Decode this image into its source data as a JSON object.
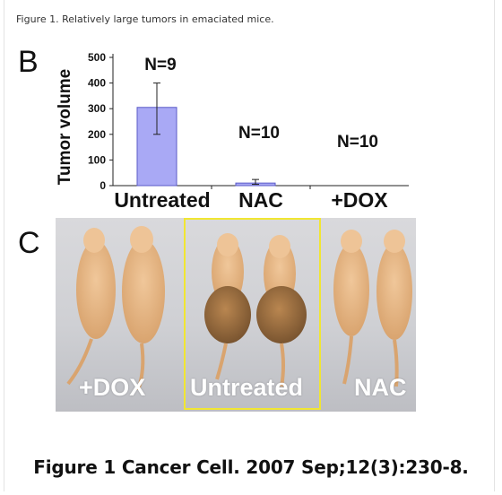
{
  "figure_caption": "Figure 1. Relatively large tumors in emaciated mice.",
  "panels": {
    "b_label": "B",
    "c_label": "C"
  },
  "chart_data": {
    "type": "bar",
    "categories": [
      "Untreated",
      "NAC",
      "+DOX"
    ],
    "values": [
      305,
      10,
      0
    ],
    "errors": [
      [
        200,
        400
      ],
      [
        5,
        24
      ],
      [
        0,
        0
      ]
    ],
    "n_labels": [
      "N=9",
      "N=10",
      "N=10"
    ],
    "ylabel": "Tumor volume",
    "ylim": [
      0,
      500
    ],
    "yticks": [
      0,
      100,
      200,
      300,
      400,
      500
    ],
    "bar_color": "#a9a9f5",
    "bar_edge_color": "#5a5ac8"
  },
  "photo": {
    "labels": {
      "dox": "+DOX",
      "untreated": "Untreated",
      "nac": "NAC"
    },
    "highlight_color": "#f1e632"
  },
  "citation": "Figure 1 Cancer Cell. 2007 Sep;12(3):230-8."
}
